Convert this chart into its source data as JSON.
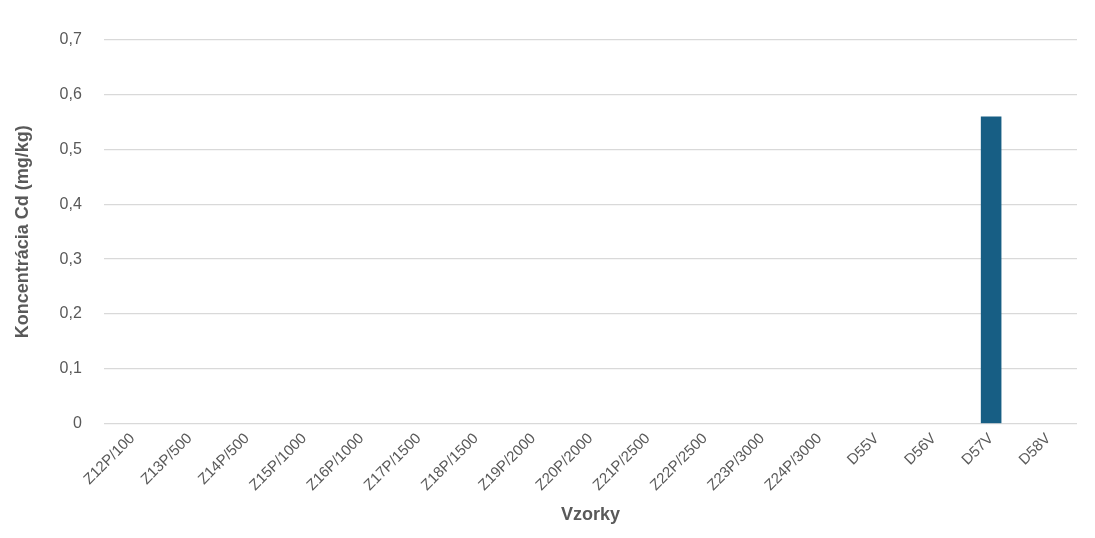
{
  "chart_data": {
    "type": "bar",
    "xlabel": "Vzorky",
    "ylabel": "Koncentrácia Cd (mg/kg)",
    "categories": [
      "Z12P/100",
      "Z13P/500",
      "Z14P/500",
      "Z15P/1000",
      "Z16P/1000",
      "Z17P/1500",
      "Z18P/1500",
      "Z19P/2000",
      "Z20P/2000",
      "Z21P/2500",
      "Z22P/2500",
      "Z23P/3000",
      "Z24P/3000",
      "D55V",
      "D56V",
      "D57V",
      "D58V"
    ],
    "values": [
      0,
      0,
      0,
      0,
      0,
      0,
      0,
      0,
      0,
      0,
      0,
      0,
      0,
      0,
      0,
      0.56,
      0
    ],
    "color": "#175e84",
    "ylim": [
      0,
      0.7
    ],
    "yticks": [
      0,
      {
        "value": 0.1,
        "label": "0,1"
      },
      {
        "value": 0.2,
        "label": "0,2"
      },
      {
        "value": 0.3,
        "label": "0,3"
      },
      {
        "value": 0.4,
        "label": "0,4"
      },
      {
        "value": 0.5,
        "label": "0,5"
      },
      {
        "value": 0.6,
        "label": "0,6"
      },
      {
        "value": 0.7,
        "label": "0,7"
      }
    ],
    "grid": "y",
    "legend": false
  }
}
